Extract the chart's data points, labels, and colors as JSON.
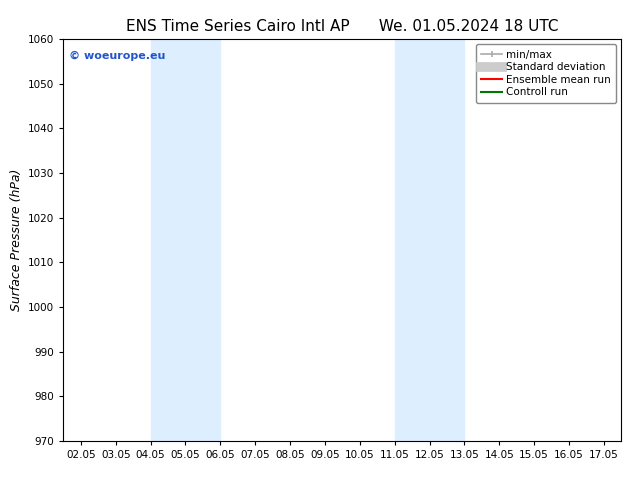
{
  "title_left": "ENS Time Series Cairo Intl AP",
  "title_right": "We. 01.05.2024 18 UTC",
  "ylabel": "Surface Pressure (hPa)",
  "ylim": [
    970,
    1060
  ],
  "yticks": [
    970,
    980,
    990,
    1000,
    1010,
    1020,
    1030,
    1040,
    1050,
    1060
  ],
  "xlim": [
    0,
    15
  ],
  "xtick_labels": [
    "02.05",
    "03.05",
    "04.05",
    "05.05",
    "06.05",
    "07.05",
    "08.05",
    "09.05",
    "10.05",
    "11.05",
    "12.05",
    "13.05",
    "14.05",
    "15.05",
    "16.05",
    "17.05"
  ],
  "xtick_positions": [
    0,
    1,
    2,
    3,
    4,
    5,
    6,
    7,
    8,
    9,
    10,
    11,
    12,
    13,
    14,
    15
  ],
  "shaded_bands": [
    {
      "xmin": 2,
      "xmax": 4,
      "color": "#ddeeff"
    },
    {
      "xmin": 9,
      "xmax": 11,
      "color": "#ddeeff"
    }
  ],
  "watermark": "© woeurope.eu",
  "watermark_color": "#2255cc",
  "legend_entries": [
    {
      "label": "min/max",
      "color": "#aaaaaa",
      "lw": 1.5
    },
    {
      "label": "Standard deviation",
      "color": "#cccccc",
      "lw": 6
    },
    {
      "label": "Ensemble mean run",
      "color": "#ff0000",
      "lw": 1.5
    },
    {
      "label": "Controll run",
      "color": "#007700",
      "lw": 1.5
    }
  ],
  "background_color": "#ffffff",
  "grid_color": "#cccccc",
  "title_fontsize": 11,
  "tick_fontsize": 7.5,
  "ylabel_fontsize": 9,
  "legend_fontsize": 7.5
}
